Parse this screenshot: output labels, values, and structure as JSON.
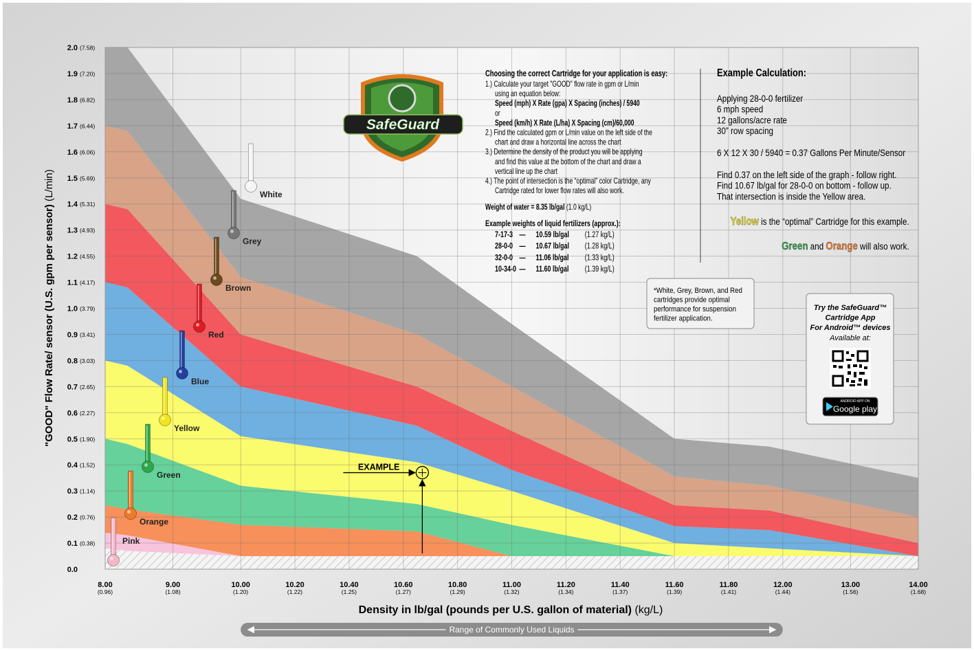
{
  "chart_data": {
    "type": "area",
    "x_label": "Density in lb/gal (pounds per U.S. gallon of material)",
    "x_label_metric": "(kg/L)",
    "y_label": "\"GOOD\" Flow Rate/ sensor (U.S. gpm per sensor)",
    "y_label_metric": "(L/min)",
    "x": [
      8,
      8.33,
      10,
      10.65,
      11,
      11.6,
      11.95,
      14
    ],
    "min_flow": [
      0.08,
      0.07,
      0.05,
      0.05,
      0.05,
      0.05,
      0.05,
      0.05
    ],
    "series": [
      {
        "name": "Pink",
        "color": "#f8c4dc",
        "cartridge_color": "#f5b7c8",
        "values": [
          0.14,
          0.13,
          0.05,
          0.05,
          0.05,
          0.05,
          0.05,
          0.05
        ]
      },
      {
        "name": "Orange",
        "color": "#f7905a",
        "cartridge_color": "#f07a2a",
        "values": [
          0.245,
          0.23,
          0.17,
          0.145,
          0.05,
          0.05,
          0.05,
          0.05
        ]
      },
      {
        "name": "Green",
        "color": "#66d19a",
        "cartridge_color": "#2ea84a",
        "values": [
          0.5,
          0.48,
          0.32,
          0.25,
          0.17,
          0.05,
          0.05,
          0.05
        ]
      },
      {
        "name": "Yellow",
        "color": "#fbfb6e",
        "cartridge_color": "#f2e41e",
        "values": [
          0.8,
          0.78,
          0.51,
          0.41,
          0.3,
          0.1,
          0.08,
          0.05
        ]
      },
      {
        "name": "Blue",
        "color": "#6fb0e0",
        "cartridge_color": "#233f9e",
        "values": [
          1.1,
          1.08,
          0.7,
          0.55,
          0.38,
          0.165,
          0.15,
          0.05
        ]
      },
      {
        "name": "Red",
        "color": "#f2585e",
        "cartridge_color": "#e01b22",
        "values": [
          1.4,
          1.38,
          0.9,
          0.7,
          0.53,
          0.245,
          0.225,
          0.1
        ]
      },
      {
        "name": "Brown",
        "color": "#d9a387",
        "cartridge_color": "#6b4a1c",
        "values": [
          1.7,
          1.68,
          1.12,
          0.9,
          0.7,
          0.355,
          0.32,
          0.2
        ]
      },
      {
        "name": "Grey",
        "color": "#a6a6a6",
        "cartridge_color": "#777777",
        "values": [
          2,
          2,
          1.42,
          1.2,
          0.94,
          0.5,
          0.47,
          0.35
        ]
      }
    ],
    "top_cartridge": {
      "name": "White",
      "cartridge_color": "#f4f4f4"
    },
    "xlim": [
      8,
      14
    ],
    "ylim": [
      0,
      2
    ],
    "xticks": [
      {
        "value": 8,
        "label": "8.00"
      },
      {
        "value": 9,
        "label": "9.00"
      },
      {
        "value": 10,
        "label": "10.00"
      },
      {
        "value": 10.2,
        "label": "10.20"
      },
      {
        "value": 10.4,
        "label": "10.40"
      },
      {
        "value": 10.6,
        "label": "10.60"
      },
      {
        "value": 10.8,
        "label": "10.80"
      },
      {
        "value": 11,
        "label": "11.00"
      },
      {
        "value": 11.2,
        "label": "11.20"
      },
      {
        "value": 11.4,
        "label": "11.40"
      },
      {
        "value": 11.6,
        "label": "11.60"
      },
      {
        "value": 11.8,
        "label": "11.80"
      },
      {
        "value": 12,
        "label": "12.00"
      },
      {
        "value": 13,
        "label": "13.00"
      },
      {
        "value": 14,
        "label": "14.00"
      }
    ],
    "xtick_metric": [
      "(0.96)",
      "(1.08)",
      "(1.20)",
      "(1.22)",
      "(1.25)",
      "(1.27)",
      "(1.29)",
      "(1.32)",
      "(1.34)",
      "(1.37)",
      "(1.39)",
      "(1.41)",
      "(1.44)",
      "(1.56)",
      "(1.68)"
    ],
    "yticks": [
      {
        "value": 0,
        "label": "0.0"
      },
      0.1,
      0.2,
      0.3,
      0.4,
      0.5,
      0.6,
      0.7,
      0.8,
      0.9,
      {
        "value": 1,
        "label": "1.0"
      },
      1.1,
      1.2,
      1.3,
      1.4,
      1.5,
      1.6,
      1.7,
      1.8,
      1.9,
      {
        "value": 2,
        "label": "2.0"
      }
    ],
    "ytick_metric": [
      null,
      "(0.38)",
      "(0.76)",
      "(1.14)",
      "(1.52)",
      "(1.90)",
      "(2.27)",
      "(2.65)",
      "(3.03)",
      "(3.41)",
      "(3.79)",
      "(4.17)",
      "(4.55)",
      "(4.93)",
      "(5.31)",
      "(5.69)",
      "(6.06)",
      "(6.44)",
      "(6.82)",
      "(7.20)",
      "(7.58)"
    ],
    "grid": true,
    "example": {
      "label": "EXAMPLE",
      "x": 10.67,
      "y": 0.37
    },
    "range": {
      "label": "Range of Commonly Used Liquids",
      "from": 10,
      "to": 12
    }
  },
  "logo": "SafeGuard",
  "guide": {
    "heading": "Choosing the correct Cartridge for your application is easy:",
    "lines": [
      {
        "text": "1.) Calculate your target \"GOOD\" flow rate in gpm or L/min",
        "bold": false
      },
      {
        "text": "using an equation below:",
        "bold": false
      },
      {
        "text": "Speed (mph) X Rate (gpa) X Spacing (inches) / 5940",
        "bold": true
      },
      {
        "text": "or",
        "bold": false
      },
      {
        "text": "Speed (km/h) X Rate (L/ha) X Spacing (cm)/60,000",
        "bold": true
      },
      {
        "text": "2.) Find the calculated gpm or L/min value on the left side of the",
        "bold": false
      },
      {
        "text": "chart and draw a horizontal line across the chart",
        "bold": false
      },
      {
        "text": "3.) Determine the density of the product you will be applying",
        "bold": false
      },
      {
        "text": "and find this value at the bottom of the chart and draw a",
        "bold": false
      },
      {
        "text": "vertical line up the chart",
        "bold": false
      },
      {
        "text": "4.) The point of intersection is the “optimal” color Cartridge, any",
        "bold": false
      },
      {
        "text": "Cartridge rated for lower flow rates will also work.",
        "bold": false
      }
    ],
    "water_weight": "Weight of water = 8.35 lb/gal",
    "water_weight_metric": "(1.0 kg/L)",
    "fertilizer_heading": "Example weights of liquid fertilizers (approx.):",
    "fertilizers": [
      [
        "7-17-3",
        "—",
        "10.59 lb/gal",
        "(1.27 kg/L)"
      ],
      [
        "28-0-0",
        "—",
        "10.67 lb/gal",
        "(1.28 kg/L)"
      ],
      [
        "32-0-0",
        "—",
        "11.06 lb/gal",
        "(1.33 kg/L)"
      ],
      [
        "10-34-0",
        "—",
        "11.60 lb/gal",
        "(1.39 kg/L)"
      ]
    ]
  },
  "example_calc": {
    "heading": "Example Calculation:",
    "lines": [
      "Applying 28-0-0 fertilizer",
      "6 mph speed",
      "12 gallons/acre rate",
      "30” row spacing"
    ],
    "formula": "6 X 12 X 30 / 5940 = 0.37 Gallons Per Minute/Sensor",
    "steps": [
      "Find 0.37 on the left side of the graph - follow right.",
      "Find 10.67 lb/gal for 28-0-0 on bottom - follow up.",
      "That intersection is inside the Yellow area."
    ],
    "optimal": [
      "Yellow",
      " is the “optimal” Cartridge for this example."
    ],
    "also": [
      "Green",
      " and ",
      "Orange",
      " will also work."
    ]
  },
  "note": [
    "*White, Grey, Brown, and Red",
    "cartridges provide optimal",
    "performance for suspension",
    "fertilizer application."
  ],
  "app": {
    "lines": [
      "Try the SafeGuard™",
      "Cartridge App",
      "For Android™ devices"
    ],
    "available": "Available at:",
    "badge_top": "ANDROID APP ON",
    "badge": "Google play"
  }
}
